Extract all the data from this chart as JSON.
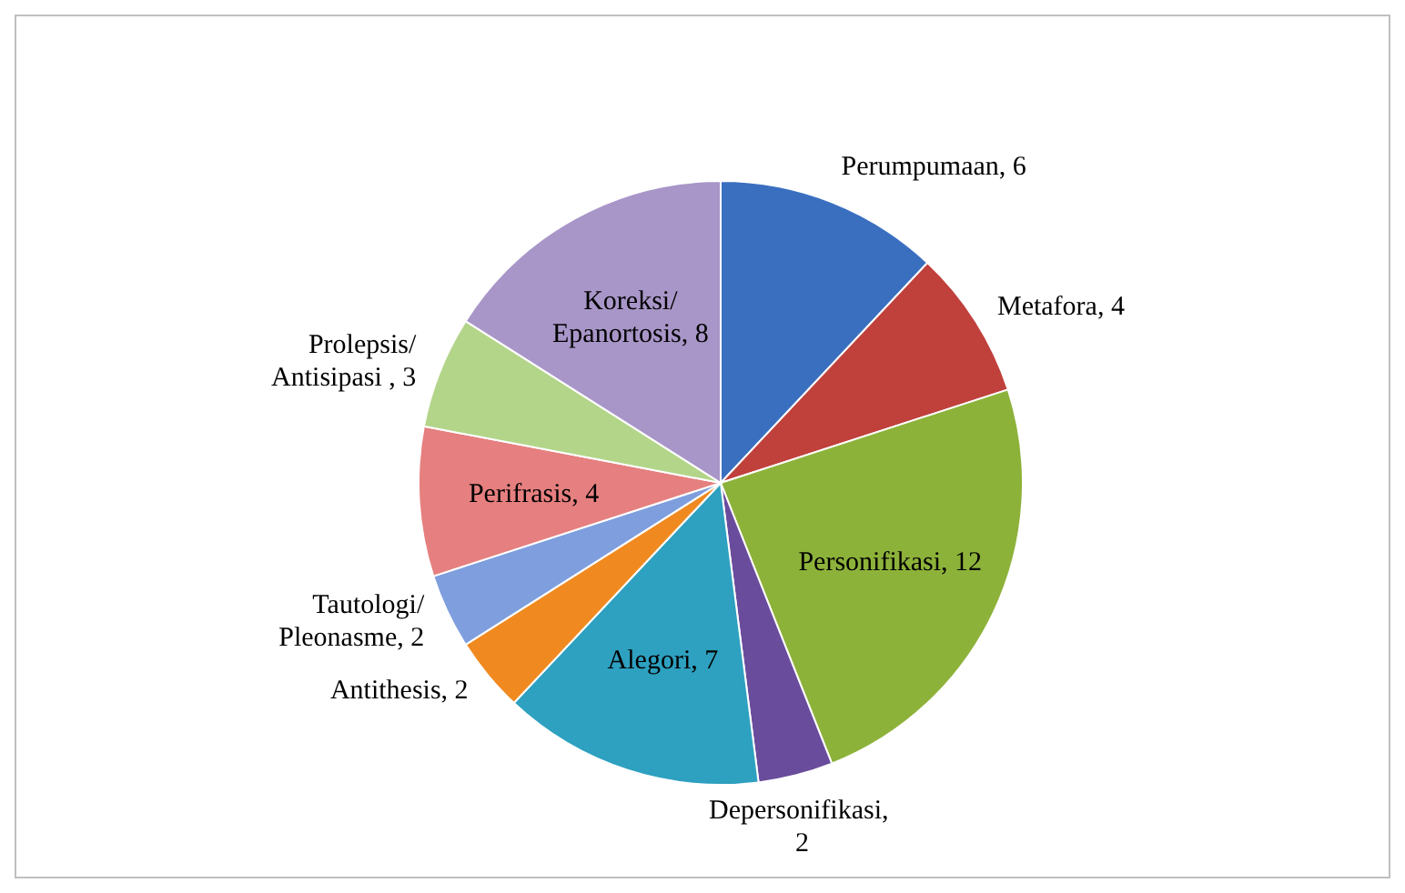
{
  "chart_data": {
    "type": "pie",
    "categories": [
      "Perumpumaan, 6",
      "Metafora, 4",
      "Personifikasi, 12",
      "Depersonifikasi,  2",
      "Alegori, 7",
      "Antithesis, 2",
      "Tautologi/ Pleonasme, 2",
      "Perifrasis, 4",
      "Prolepsis/ Antisipasi , 3",
      "Koreksi/ Epanortosis, 8"
    ],
    "values": [
      6,
      4,
      12,
      2,
      7,
      2,
      2,
      4,
      3,
      8
    ],
    "colors": [
      "#3a6fc0",
      "#c0403c",
      "#8db23a",
      "#6a4c9c",
      "#2ea0c0",
      "#f08a20",
      "#7f9ede",
      "#e67f7f",
      "#b3d58a",
      "#a896c8"
    ],
    "legend": false
  }
}
